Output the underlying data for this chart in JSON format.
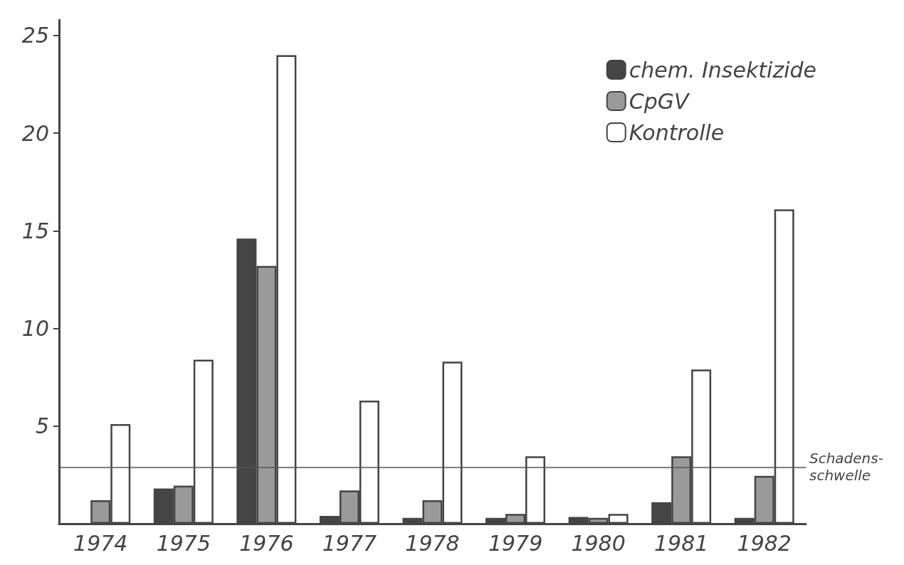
{
  "chart_data": {
    "type": "bar",
    "categories": [
      "1974",
      "1975",
      "1976",
      "1977",
      "1978",
      "1979",
      "1980",
      "1981",
      "1982"
    ],
    "series": [
      {
        "name": "chem. Insektizide",
        "color": "#454545",
        "values": [
          null,
          1.8,
          14.6,
          0.4,
          0.3,
          0.3,
          0.35,
          1.1,
          0.3
        ]
      },
      {
        "name": "CpGV",
        "color": "#9a9a9a",
        "values": [
          1.2,
          1.95,
          13.2,
          1.7,
          1.2,
          0.5,
          0.3,
          3.45,
          2.45
        ]
      },
      {
        "name": "Kontrolle",
        "color": "#ffffff",
        "values": [
          5.1,
          8.4,
          24.0,
          6.3,
          8.3,
          3.45,
          0.5,
          7.9,
          16.1
        ]
      }
    ],
    "ylim": [
      0,
      25.8
    ],
    "yticks": [
      5,
      10,
      15,
      20,
      25
    ],
    "grid": false,
    "legend": "top right",
    "ref_lines": [
      {
        "axis": "y",
        "value": 2.9,
        "label": "Schadens-\nschwelle",
        "color": "#555555"
      }
    ]
  }
}
